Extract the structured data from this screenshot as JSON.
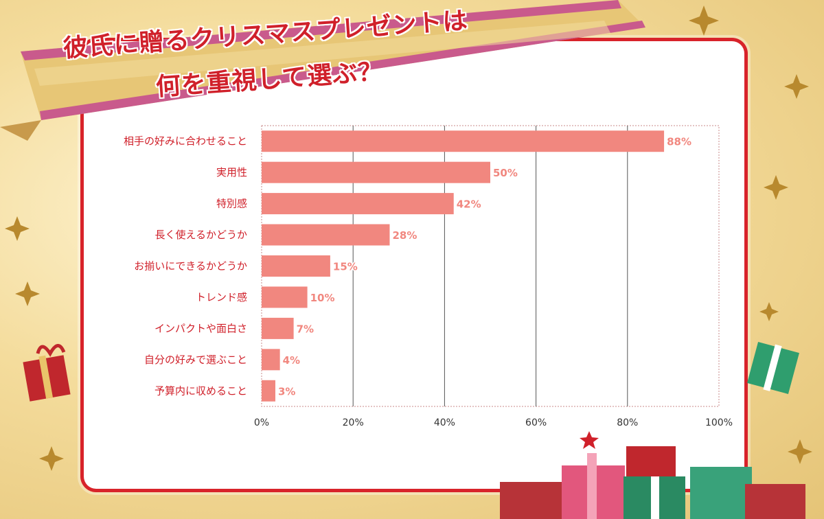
{
  "title": {
    "line1": "彼氏に贈るクリスマスプレゼントは",
    "line2": "何を重視して選ぶ？"
  },
  "colors": {
    "bar": "#f1877f",
    "title": "#d0202a",
    "frame": "#d8232a",
    "gold": "#e8c877"
  },
  "chart_data": {
    "type": "bar",
    "orientation": "horizontal",
    "categories": [
      "相手の好みに合わせること",
      "実用性",
      "特別感",
      "長く使えるかどうか",
      "お揃いにできるかどうか",
      "トレンド感",
      "インパクトや面白さ",
      "自分の好みで選ぶこと",
      "予算内に収めること"
    ],
    "values": [
      88,
      50,
      42,
      28,
      15,
      10,
      7,
      4,
      3
    ],
    "value_labels": [
      "88%",
      "50%",
      "42%",
      "28%",
      "15%",
      "10%",
      "7%",
      "4%",
      "3%"
    ],
    "xlim": [
      0,
      100
    ],
    "x_ticks": [
      0,
      20,
      40,
      60,
      80,
      100
    ],
    "x_tick_labels": [
      "0%",
      "20%",
      "40%",
      "60%",
      "80%",
      "100%"
    ],
    "grid": "vertical"
  }
}
